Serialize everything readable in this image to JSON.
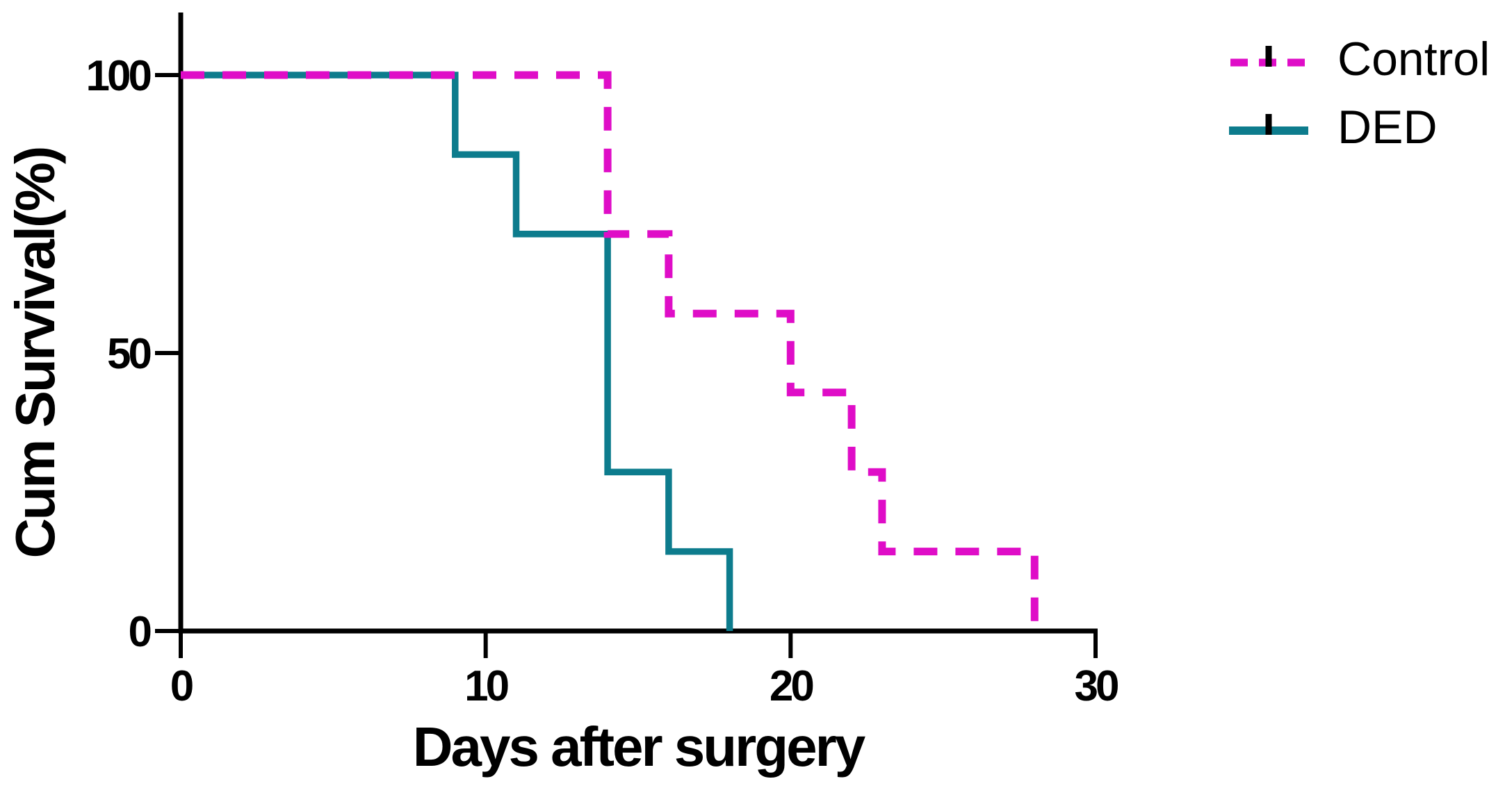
{
  "figure": {
    "background": "#ffffff",
    "title": ""
  },
  "colors": {
    "axis": "#000000",
    "text": "#000000",
    "control_line": "#df0dc7",
    "ded_line": "#0d7c8d",
    "censor_tick": "#000000"
  },
  "legend": {
    "position": "top-right",
    "items": [
      {
        "label": "Control",
        "style": "dashed",
        "color": "#df0dc7",
        "symbol": "dashed-line-with-censor-tick"
      },
      {
        "label": "DED",
        "style": "solid",
        "color": "#0d7c8d",
        "symbol": "solid-line-with-censor-tick"
      }
    ]
  },
  "chart_data": {
    "type": "line",
    "subtype": "kaplan_meier_survival_step",
    "title": "",
    "xlabel": "Days after surgery",
    "ylabel": "Cum Survival(%)",
    "xlim": [
      0,
      30
    ],
    "ylim": [
      0,
      100
    ],
    "x_ticks": [
      0,
      10,
      20,
      30
    ],
    "y_ticks": [
      100,
      50,
      0
    ],
    "grid": false,
    "legend_position": "top-right",
    "series": [
      {
        "name": "Control",
        "color": "#df0dc7",
        "line_style": "dashed",
        "group_size": 7,
        "event_days": [
          14,
          14,
          16,
          20,
          22,
          23,
          28
        ],
        "step_points": [
          [
            0,
            100
          ],
          [
            14,
            100
          ],
          [
            14,
            71.4
          ],
          [
            16,
            71.4
          ],
          [
            16,
            57.1
          ],
          [
            20,
            57.1
          ],
          [
            20,
            42.9
          ],
          [
            22,
            42.9
          ],
          [
            22,
            28.6
          ],
          [
            23,
            28.6
          ],
          [
            23,
            14.3
          ],
          [
            28,
            14.3
          ],
          [
            28,
            0
          ]
        ]
      },
      {
        "name": "DED",
        "color": "#0d7c8d",
        "line_style": "solid",
        "group_size": 7,
        "event_days": [
          9,
          11,
          14,
          14,
          14,
          16,
          18
        ],
        "step_points": [
          [
            0,
            100
          ],
          [
            9,
            100
          ],
          [
            9,
            85.7
          ],
          [
            11,
            85.7
          ],
          [
            11,
            71.4
          ],
          [
            14,
            71.4
          ],
          [
            14,
            28.6
          ],
          [
            16,
            28.6
          ],
          [
            16,
            14.3
          ],
          [
            18,
            14.3
          ],
          [
            18,
            0
          ]
        ]
      }
    ]
  }
}
